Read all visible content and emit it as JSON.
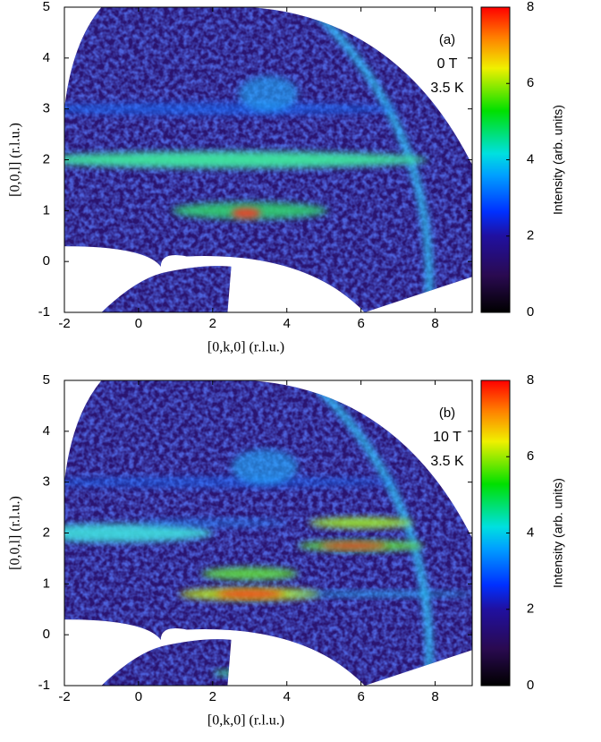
{
  "chart_data": [
    {
      "type": "heatmap",
      "panel_label": "(a)",
      "annotations": [
        "0 T",
        "3.5 K"
      ],
      "xlabel": "[0,k,0] (r.l.u.)",
      "ylabel": "[0,0,l] (r.l.u.)",
      "xlim": [
        -2,
        9
      ],
      "ylim": [
        -1,
        5
      ],
      "xticks": [
        -2,
        0,
        2,
        4,
        6,
        8
      ],
      "yticks": [
        -1,
        0,
        1,
        2,
        3,
        4,
        5
      ],
      "colorbar": {
        "label": "Intensity (arb. units)",
        "lim": [
          0,
          8
        ],
        "ticks": [
          0,
          2,
          4,
          6,
          8
        ]
      }
    },
    {
      "type": "heatmap",
      "panel_label": "(b)",
      "annotations": [
        "10 T",
        "3.5 K"
      ],
      "xlabel": "[0,k,0] (r.l.u.)",
      "ylabel": "[0,0,l] (r.l.u.)",
      "xlim": [
        -2,
        9
      ],
      "ylim": [
        -1,
        5
      ],
      "xticks": [
        -2,
        0,
        2,
        4,
        6,
        8
      ],
      "yticks": [
        -1,
        0,
        1,
        2,
        3,
        4,
        5
      ],
      "colorbar": {
        "label": "Intensity (arb. units)",
        "lim": [
          0,
          8
        ],
        "ticks": [
          0,
          2,
          4,
          6,
          8
        ]
      }
    }
  ]
}
